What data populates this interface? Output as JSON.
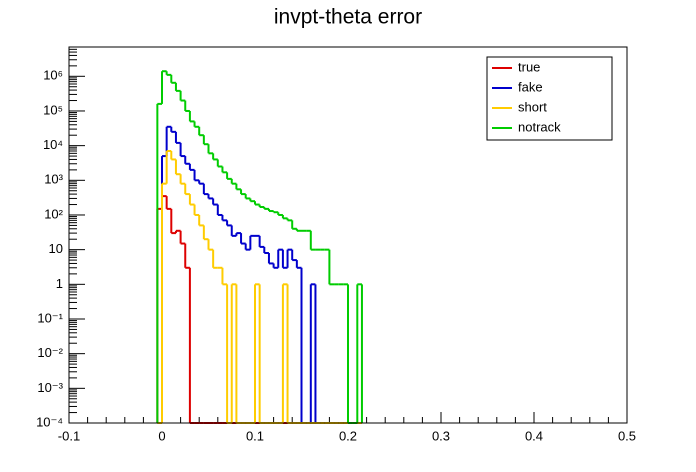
{
  "chart_data": {
    "type": "histogram",
    "title": "invpt-theta error",
    "log_y": true,
    "legend": "top-right",
    "bins": [
      -0.005,
      0,
      0.005,
      0.01,
      0.015,
      0.02,
      0.025,
      0.03,
      0.035,
      0.04,
      0.045,
      0.05,
      0.055,
      0.06,
      0.065,
      0.07,
      0.075,
      0.08,
      0.085,
      0.09,
      0.095,
      0.1,
      0.105,
      0.11,
      0.115,
      0.12,
      0.125,
      0.13,
      0.135,
      0.14,
      0.145,
      0.15,
      0.155,
      0.16,
      0.165,
      0.17,
      0.175,
      0.18,
      0.185,
      0.19,
      0.195,
      0.2,
      0.205,
      0.21,
      0.215
    ],
    "series": [
      {
        "name": "true",
        "color": "#dd0000",
        "values": [
          150,
          350,
          150,
          30,
          35,
          15,
          3,
          0,
          0,
          0,
          0,
          0,
          0,
          0,
          0,
          0,
          0,
          0,
          0,
          0,
          0,
          0,
          0,
          0,
          0,
          0,
          0,
          0,
          0,
          0,
          0,
          0,
          0,
          0,
          0,
          0,
          0,
          0,
          0,
          0,
          0,
          0,
          0,
          0
        ]
      },
      {
        "name": "fake",
        "color": "#0000cc",
        "values": [
          0,
          5000,
          35000,
          25000,
          12000,
          5000,
          3000,
          2000,
          1000,
          800,
          400,
          300,
          200,
          100,
          70,
          50,
          25,
          30,
          15,
          10,
          25,
          25,
          12,
          8,
          4,
          3,
          10,
          3,
          10,
          5,
          3,
          0,
          0,
          1,
          0,
          0,
          0,
          0,
          0,
          0,
          0,
          0,
          0,
          0
        ]
      },
      {
        "name": "short",
        "color": "#ffcc00",
        "values": [
          0,
          800,
          7000,
          4000,
          1500,
          800,
          400,
          200,
          100,
          50,
          20,
          10,
          3,
          3,
          1,
          0,
          1,
          0,
          0,
          0,
          0,
          1,
          0,
          0,
          0,
          0,
          0,
          1,
          0,
          0,
          0,
          0,
          0,
          0,
          0,
          0,
          0,
          0,
          0,
          0,
          0,
          0,
          0,
          0
        ]
      },
      {
        "name": "notrack",
        "color": "#00cc00",
        "values": [
          160000,
          1400000,
          1100000,
          650000,
          380000,
          200000,
          100000,
          50000,
          35000,
          20000,
          11000,
          6000,
          4000,
          2500,
          1700,
          1100,
          800,
          550,
          400,
          300,
          250,
          200,
          170,
          150,
          130,
          120,
          100,
          80,
          70,
          40,
          35,
          35,
          35,
          10,
          10,
          10,
          10,
          1,
          1,
          1,
          1,
          0,
          0,
          1
        ]
      }
    ],
    "xlim": [
      -0.1,
      0.5
    ],
    "xticks": [
      -0.1,
      0,
      0.1,
      0.2,
      0.3,
      0.4,
      0.5
    ],
    "ylim": [
      0.0001,
      7000000
    ],
    "yticks": [
      {
        "value": 0.0001,
        "label": "10⁻⁴"
      },
      {
        "value": 0.001,
        "label": "10⁻³"
      },
      {
        "value": 0.01,
        "label": "10⁻²"
      },
      {
        "value": 0.1,
        "label": "10⁻¹"
      },
      1,
      10,
      {
        "value": 100,
        "label": "10²"
      },
      {
        "value": 1000,
        "label": "10³"
      },
      {
        "value": 10000,
        "label": "10⁴"
      },
      {
        "value": 100000,
        "label": "10⁵"
      },
      {
        "value": 1000000,
        "label": "10⁶"
      }
    ]
  }
}
